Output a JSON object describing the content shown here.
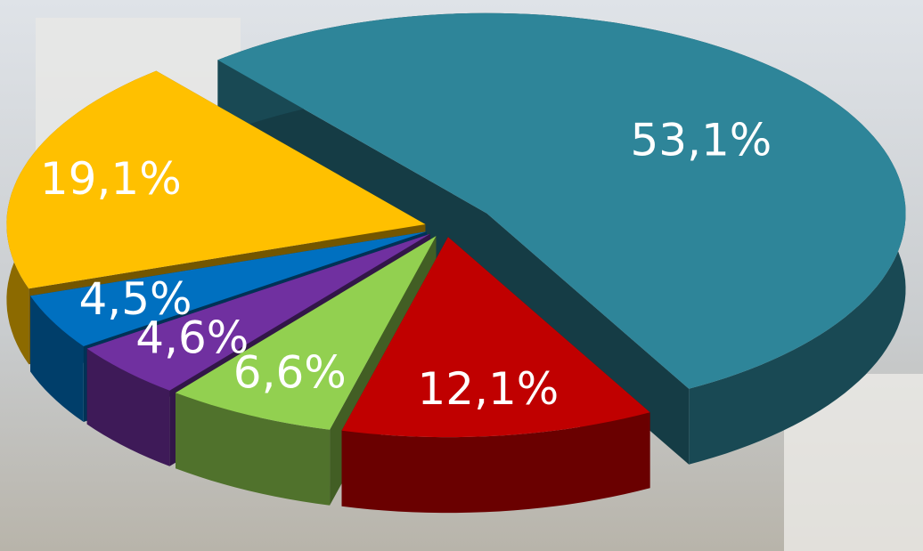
{
  "chart_data": {
    "type": "pie3d",
    "values": [
      53.1,
      12.1,
      6.6,
      4.6,
      4.5,
      19.1
    ],
    "value_labels": [
      "53,1%",
      "12,1%",
      "6,6%",
      "4,6%",
      "4,5%",
      "19,1%"
    ],
    "colors": [
      "#2e8599",
      "#c00000",
      "#92d050",
      "#7030a0",
      "#0070c0",
      "#ffc000"
    ]
  }
}
